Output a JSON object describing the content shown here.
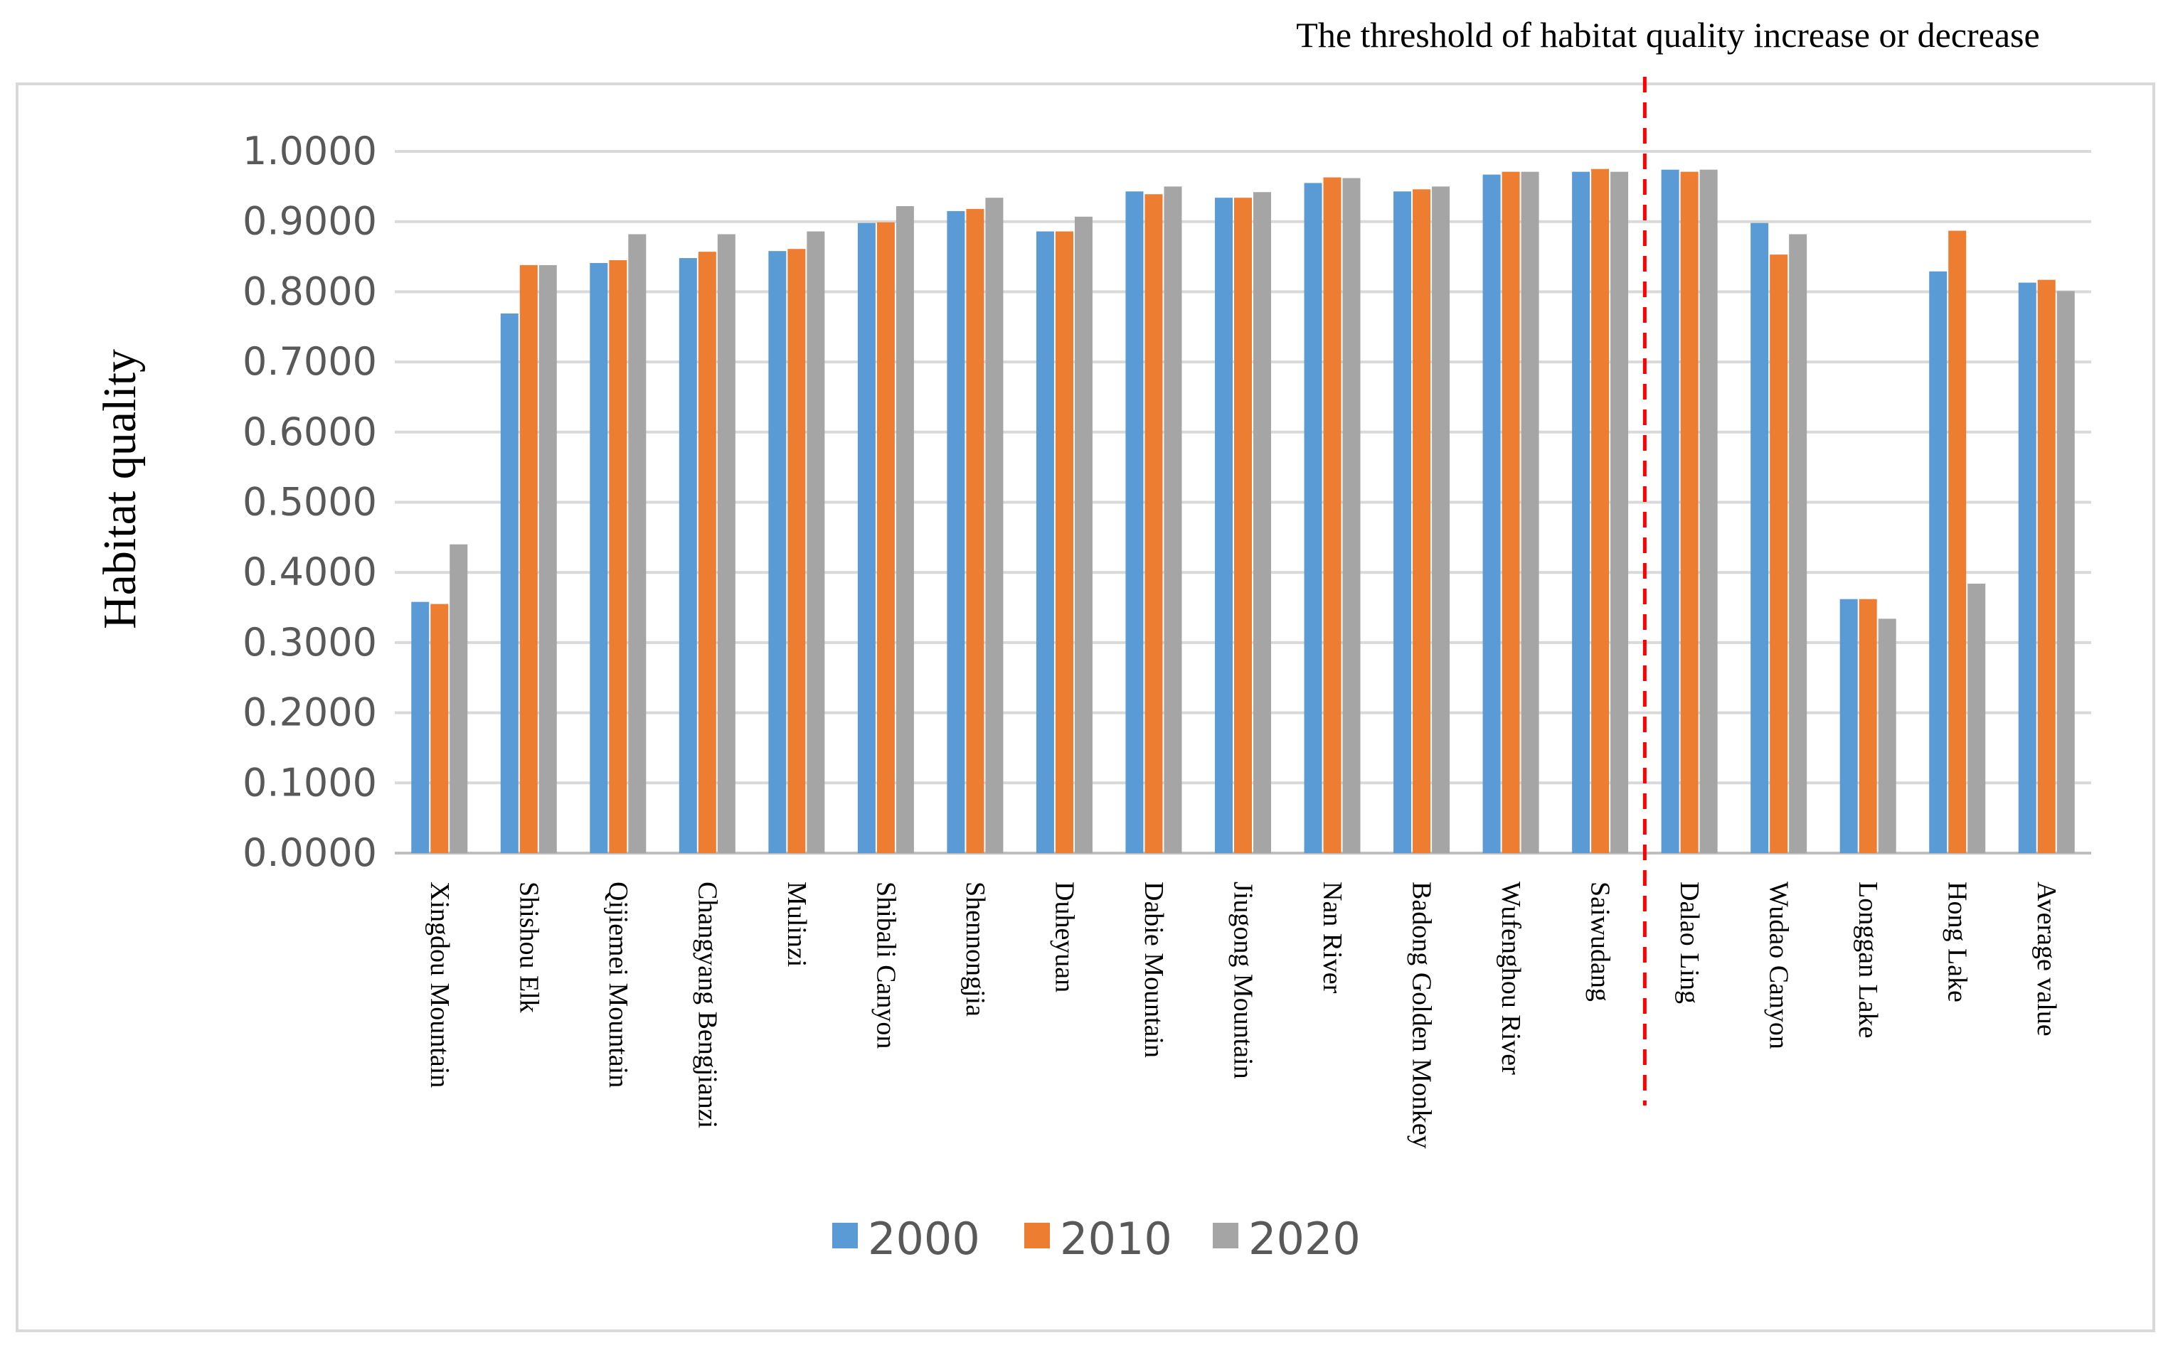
{
  "chart_data": {
    "type": "bar",
    "title": "",
    "annotation": "The threshold of habitat quality increase or decrease",
    "xlabel": "",
    "ylabel": "Habitat quality",
    "ylim": [
      0,
      1
    ],
    "yticks": [
      "0.0000",
      "0.1000",
      "0.2000",
      "0.3000",
      "0.4000",
      "0.5000",
      "0.6000",
      "0.7000",
      "0.8000",
      "0.9000",
      "1.0000"
    ],
    "grid": true,
    "legend_position": "bottom",
    "threshold_after_category": "Saiwudang",
    "categories": [
      "Xingdou Mountain",
      "Shishou Elk",
      "Qijiemei Mountain",
      "Changyang Bengjianzi",
      "Mulinzi",
      "Shibali Canyon",
      "Shennongjia",
      "Duheyuan",
      "Dabie Mountain",
      "Jiugong Mountain",
      "Nan River",
      "Badong Golden Monkey",
      "Wufenghou River",
      "Saiwudang",
      "Dalao Ling",
      "Wudao Canyon",
      "Longgan Lake",
      "Hong Lake",
      "Average value"
    ],
    "series": [
      {
        "name": "2000",
        "color": "#5b9bd5",
        "values": [
          0.358,
          0.769,
          0.841,
          0.848,
          0.858,
          0.898,
          0.915,
          0.886,
          0.943,
          0.934,
          0.955,
          0.943,
          0.967,
          0.971,
          0.974,
          0.898,
          0.362,
          0.829,
          0.813
        ]
      },
      {
        "name": "2010",
        "color": "#ed7d31",
        "values": [
          0.355,
          0.838,
          0.845,
          0.857,
          0.861,
          0.899,
          0.918,
          0.886,
          0.939,
          0.934,
          0.963,
          0.946,
          0.971,
          0.975,
          0.971,
          0.853,
          0.362,
          0.887,
          0.817
        ]
      },
      {
        "name": "2020",
        "color": "#a5a5a5",
        "values": [
          0.44,
          0.838,
          0.882,
          0.882,
          0.886,
          0.922,
          0.934,
          0.907,
          0.95,
          0.942,
          0.962,
          0.95,
          0.971,
          0.971,
          0.974,
          0.882,
          0.334,
          0.384,
          0.801
        ]
      }
    ]
  }
}
